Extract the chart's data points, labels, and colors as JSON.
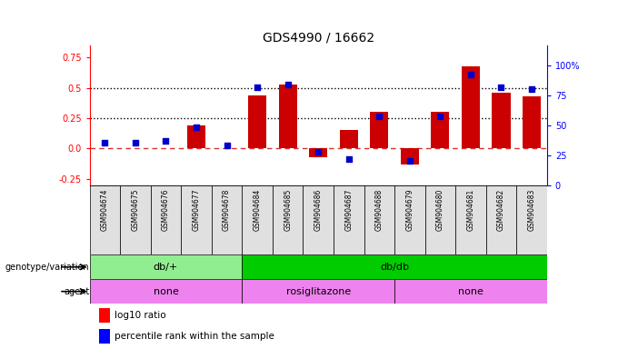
{
  "title": "GDS4990 / 16662",
  "samples": [
    "GSM904674",
    "GSM904675",
    "GSM904676",
    "GSM904677",
    "GSM904678",
    "GSM904684",
    "GSM904685",
    "GSM904686",
    "GSM904687",
    "GSM904688",
    "GSM904679",
    "GSM904680",
    "GSM904681",
    "GSM904682",
    "GSM904683"
  ],
  "log10_ratio": [
    0.0,
    0.0,
    0.0,
    0.19,
    0.0,
    0.44,
    0.53,
    -0.07,
    0.15,
    0.3,
    -0.13,
    0.3,
    0.68,
    0.46,
    0.43
  ],
  "percentile": [
    35,
    35,
    37,
    48,
    33,
    82,
    84,
    28,
    22,
    57,
    20,
    57,
    92,
    82,
    80
  ],
  "genotype_groups": [
    {
      "label": "db/+",
      "start": 0,
      "end": 5,
      "color": "#90EE90"
    },
    {
      "label": "db/db",
      "start": 5,
      "end": 15,
      "color": "#00CC00"
    }
  ],
  "agent_groups": [
    {
      "label": "none",
      "start": 0,
      "end": 5,
      "color": "#EE82EE"
    },
    {
      "label": "rosiglitazone",
      "start": 5,
      "end": 10,
      "color": "#EE82EE"
    },
    {
      "label": "none",
      "start": 10,
      "end": 15,
      "color": "#EE82EE"
    }
  ],
  "ylim_left": [
    -0.3,
    0.85
  ],
  "ylim_right": [
    0,
    116.667
  ],
  "yticks_left": [
    -0.25,
    0.0,
    0.25,
    0.5,
    0.75
  ],
  "yticks_right": [
    0,
    25,
    50,
    75,
    100
  ],
  "bar_color": "#CC0000",
  "dot_color": "#0000CC",
  "hline_y": 0.0,
  "dotted_lines": [
    0.25,
    0.5
  ],
  "background_color": "#ffffff",
  "legend_items": [
    "log10 ratio",
    "percentile rank within the sample"
  ]
}
